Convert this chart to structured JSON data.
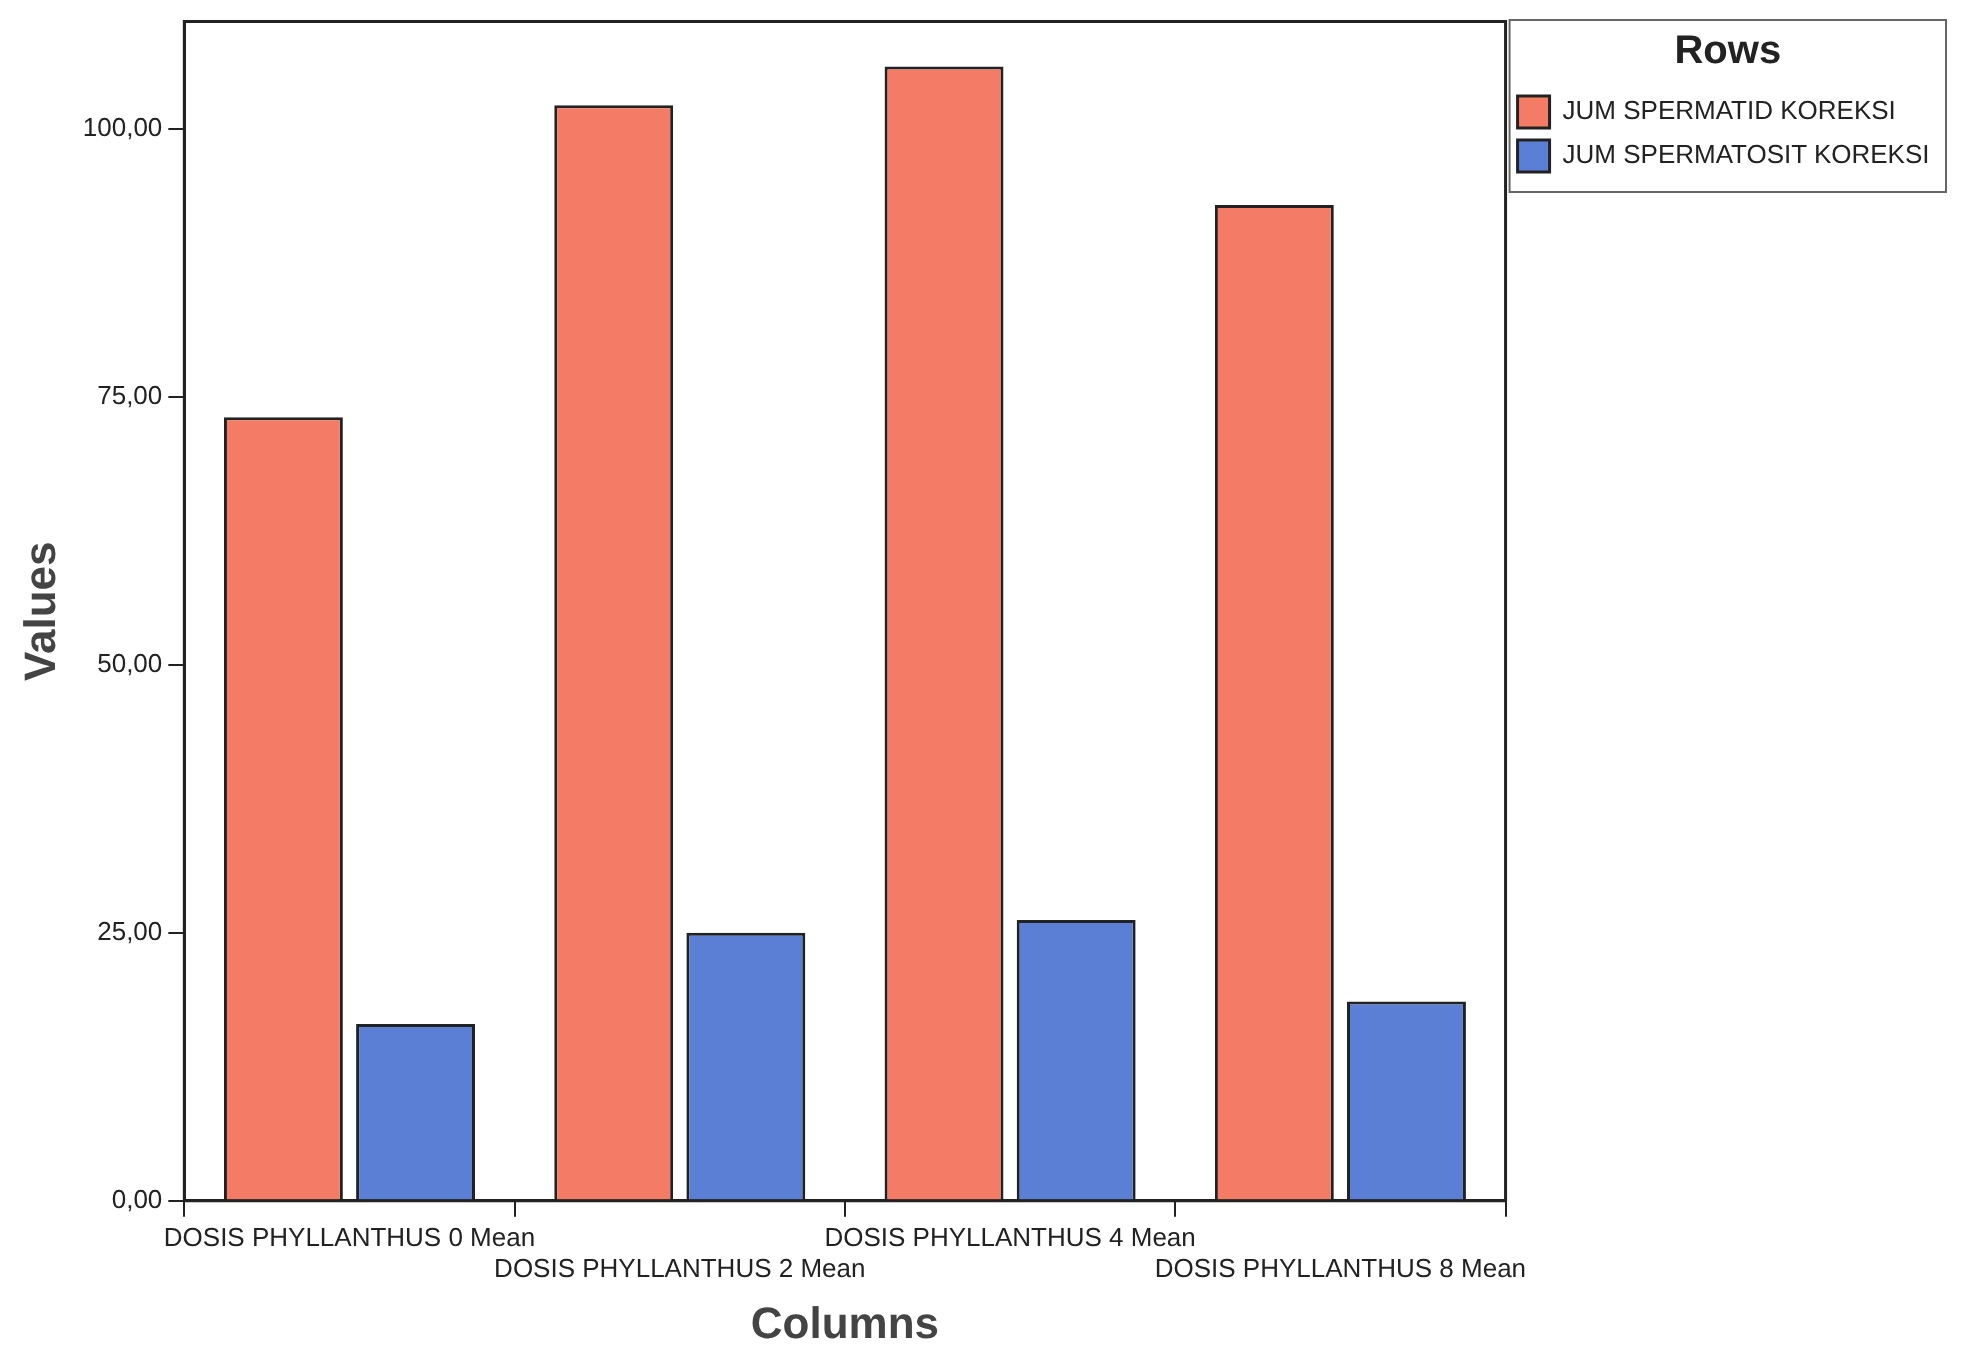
{
  "chart_data": {
    "type": "bar",
    "xlabel": "Columns",
    "ylabel": "Values",
    "legend_title": "Rows",
    "categories": [
      "DOSIS PHYLLANTHUS 0 Mean",
      "DOSIS PHYLLANTHUS 2 Mean",
      "DOSIS PHYLLANTHUS 4 Mean",
      "DOSIS PHYLLANTHUS 8 Mean"
    ],
    "series": [
      {
        "name": "JUM SPERMATID KOREKSI",
        "color": "#f47c66",
        "values": [
          73.1,
          102.2,
          105.8,
          92.9
        ]
      },
      {
        "name": "JUM SPERMATOSIT KOREKSI",
        "color": "#5b7fd4",
        "values": [
          16.5,
          25.0,
          26.2,
          18.6
        ]
      }
    ],
    "ylim": [
      0,
      110
    ],
    "yticks": [
      {
        "value": 0,
        "label": "0,00"
      },
      {
        "value": 25,
        "label": "25,00"
      },
      {
        "value": 50,
        "label": "50,00"
      },
      {
        "value": 75,
        "label": "75,00"
      },
      {
        "value": 100,
        "label": "100,00"
      }
    ],
    "grid": false,
    "legend": "top right"
  }
}
